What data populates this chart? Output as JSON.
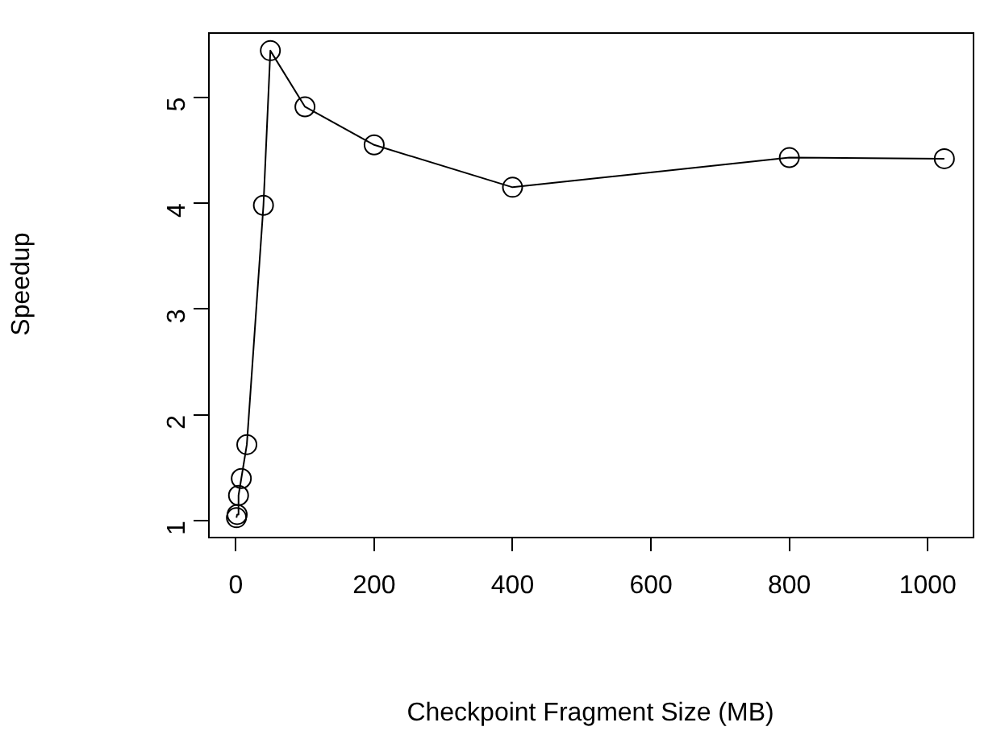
{
  "chart_data": {
    "type": "line",
    "xlabel": "Checkpoint Fragment Size (MB)",
    "ylabel": "Speedup",
    "x": [
      1,
      2,
      4,
      8,
      16,
      40,
      50,
      100,
      200,
      400,
      800,
      1024
    ],
    "series": [
      {
        "color": "#000000",
        "values": [
          1.03,
          1.06,
          1.24,
          1.4,
          1.72,
          3.98,
          5.44,
          4.91,
          4.55,
          4.15,
          4.43,
          4.42
        ]
      }
    ],
    "xlim": [
      -40,
      1065
    ],
    "xticks": [
      0,
      200,
      400,
      600,
      800,
      1000
    ],
    "ylim": [
      0.85,
      5.62
    ],
    "yticks": [
      1,
      2,
      3,
      4,
      5
    ],
    "grid": false,
    "legend": false,
    "marker": "circle",
    "line_style": "solid"
  }
}
